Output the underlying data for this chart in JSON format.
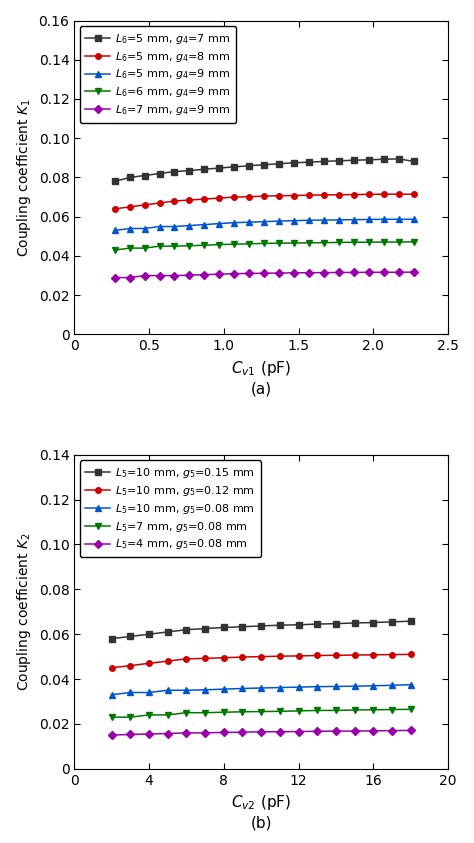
{
  "plot_a": {
    "title": "(a)",
    "xlabel": "$C_{v1}$ (pF)",
    "ylabel": "Coupling coefficient $K_1$",
    "xlim": [
      0,
      2.5
    ],
    "ylim": [
      0,
      0.16
    ],
    "xticks": [
      0,
      0.5,
      1.0,
      1.5,
      2.0,
      2.5
    ],
    "xticklabels": [
      "0",
      "0.5",
      "1.0",
      "1.5",
      "2.0",
      "2.5"
    ],
    "yticks": [
      0,
      0.02,
      0.04,
      0.06,
      0.08,
      0.1,
      0.12,
      0.14,
      0.16
    ],
    "yticklabels": [
      "0",
      "0.02",
      "0.04",
      "0.06",
      "0.08",
      "0.10",
      "0.12",
      "0.14",
      "0.16"
    ],
    "x": [
      0.27,
      0.37,
      0.47,
      0.57,
      0.67,
      0.77,
      0.87,
      0.97,
      1.07,
      1.17,
      1.27,
      1.37,
      1.47,
      1.57,
      1.67,
      1.77,
      1.87,
      1.97,
      2.07,
      2.17,
      2.27
    ],
    "series": [
      {
        "label": "$L_6$=5 mm, $g_4$=7 mm",
        "color": "#333333",
        "marker": "s",
        "y": [
          0.078,
          0.08,
          0.081,
          0.082,
          0.083,
          0.0835,
          0.0842,
          0.0848,
          0.0854,
          0.086,
          0.0865,
          0.087,
          0.0875,
          0.0878,
          0.0882,
          0.0885,
          0.0888,
          0.089,
          0.0893,
          0.0895,
          0.0882
        ]
      },
      {
        "label": "$L_6$=5 mm, $g_4$=8 mm",
        "color": "#cc0000",
        "marker": "o",
        "y": [
          0.064,
          0.065,
          0.066,
          0.067,
          0.068,
          0.0685,
          0.069,
          0.0695,
          0.07,
          0.0702,
          0.0705,
          0.0707,
          0.0708,
          0.071,
          0.0711,
          0.0712,
          0.0713,
          0.0714,
          0.0715,
          0.0715,
          0.0715
        ]
      },
      {
        "label": "$L_6$=5 mm, $g_4$=9 mm",
        "color": "#0055cc",
        "marker": "^",
        "y": [
          0.053,
          0.054,
          0.054,
          0.055,
          0.055,
          0.0555,
          0.056,
          0.0565,
          0.057,
          0.0572,
          0.0575,
          0.0578,
          0.058,
          0.0582,
          0.0583,
          0.0584,
          0.0585,
          0.0586,
          0.0587,
          0.0587,
          0.0587
        ]
      },
      {
        "label": "$L_6$=6 mm, $g_4$=9 mm",
        "color": "#007700",
        "marker": "v",
        "y": [
          0.043,
          0.044,
          0.044,
          0.045,
          0.045,
          0.0452,
          0.0455,
          0.0458,
          0.046,
          0.0462,
          0.0464,
          0.0465,
          0.0466,
          0.0467,
          0.0468,
          0.0469,
          0.047,
          0.047,
          0.0471,
          0.0471,
          0.0472
        ]
      },
      {
        "label": "$L_6$=7 mm, $g_4$=9 mm",
        "color": "#9900aa",
        "marker": "D",
        "y": [
          0.029,
          0.029,
          0.03,
          0.03,
          0.03,
          0.0302,
          0.0305,
          0.0307,
          0.031,
          0.0311,
          0.0312,
          0.0313,
          0.0314,
          0.0315,
          0.0315,
          0.0316,
          0.0316,
          0.0317,
          0.0317,
          0.0317,
          0.0318
        ]
      }
    ]
  },
  "plot_b": {
    "title": "(b)",
    "xlabel": "$C_{v2}$ (pF)",
    "ylabel": "Coupling coefficient $K_2$",
    "xlim": [
      0,
      20
    ],
    "ylim": [
      0,
      0.14
    ],
    "xticks": [
      0,
      4,
      8,
      12,
      16,
      20
    ],
    "xticklabels": [
      "0",
      "4",
      "8",
      "12",
      "16",
      "20"
    ],
    "yticks": [
      0,
      0.02,
      0.04,
      0.06,
      0.08,
      0.1,
      0.12,
      0.14
    ],
    "yticklabels": [
      "0",
      "0.02",
      "0.04",
      "0.06",
      "0.08",
      "0.10",
      "0.12",
      "0.14"
    ],
    "x": [
      2,
      3,
      4,
      5,
      6,
      7,
      8,
      9,
      10,
      11,
      12,
      13,
      14,
      15,
      16,
      17,
      18
    ],
    "series": [
      {
        "label": "$L_5$=10 mm, $g_5$=0.15 mm",
        "color": "#333333",
        "marker": "s",
        "y": [
          0.058,
          0.059,
          0.06,
          0.061,
          0.062,
          0.0625,
          0.063,
          0.0633,
          0.0637,
          0.064,
          0.0642,
          0.0645,
          0.0647,
          0.065,
          0.0652,
          0.0655,
          0.0658
        ]
      },
      {
        "label": "$L_5$=10 mm, $g_5$=0.12 mm",
        "color": "#cc0000",
        "marker": "o",
        "y": [
          0.045,
          0.046,
          0.047,
          0.048,
          0.049,
          0.0492,
          0.0495,
          0.0498,
          0.05,
          0.0502,
          0.0503,
          0.0505,
          0.0506,
          0.0507,
          0.0508,
          0.0509,
          0.051
        ]
      },
      {
        "label": "$L_5$=10 mm, $g_5$=0.08 mm",
        "color": "#0055cc",
        "marker": "^",
        "y": [
          0.033,
          0.034,
          0.034,
          0.035,
          0.035,
          0.0352,
          0.0355,
          0.0358,
          0.036,
          0.0362,
          0.0364,
          0.0366,
          0.0367,
          0.0368,
          0.037,
          0.0372,
          0.0375
        ]
      },
      {
        "label": "$L_5$=7 mm, $g_5$=0.08 mm",
        "color": "#007700",
        "marker": "v",
        "y": [
          0.023,
          0.023,
          0.024,
          0.024,
          0.025,
          0.025,
          0.0252,
          0.0254,
          0.0255,
          0.0256,
          0.0258,
          0.026,
          0.026,
          0.0262,
          0.0263,
          0.0264,
          0.0265
        ]
      },
      {
        "label": "$L_5$=4 mm, $g_5$=0.08 mm",
        "color": "#9900aa",
        "marker": "D",
        "y": [
          0.015,
          0.0153,
          0.0155,
          0.0157,
          0.016,
          0.016,
          0.0162,
          0.0163,
          0.0165,
          0.0165,
          0.0166,
          0.0167,
          0.0168,
          0.0168,
          0.0169,
          0.017,
          0.0171
        ]
      }
    ]
  },
  "figsize": [
    4.74,
    8.43
  ],
  "dpi": 100
}
